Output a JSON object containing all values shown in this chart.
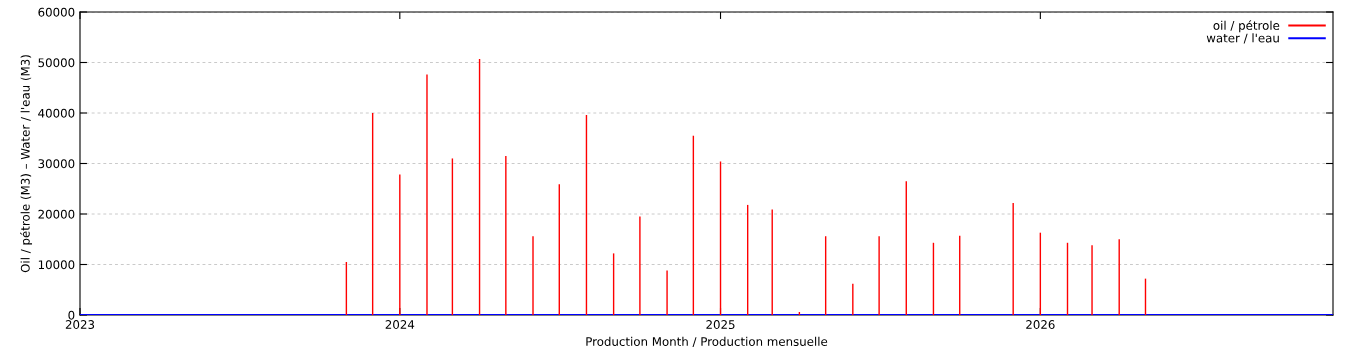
{
  "chart_data": {
    "type": "bar",
    "xlabel": "Production Month / Production mensuelle",
    "ylabel": "Oil / pétrole (M3) – Water / l'eau (M3)",
    "xlim": [
      "2023-01-01",
      "2026-12-01"
    ],
    "xticks": [
      {
        "value": "2023-01-01",
        "label": "2023"
      },
      {
        "value": "2024-01-01",
        "label": "2024"
      },
      {
        "value": "2025-01-01",
        "label": "2025"
      },
      {
        "value": "2026-01-01",
        "label": "2026"
      }
    ],
    "ylim": [
      0,
      60000
    ],
    "yticks": [
      0,
      10000,
      20000,
      30000,
      40000,
      50000,
      60000
    ],
    "grid": "y",
    "legend": "top right",
    "series": [
      {
        "name": "oil / pétrole",
        "color": "#ff0000",
        "x": [
          "2023-11-01",
          "2023-12-01",
          "2024-01-01",
          "2024-02-01",
          "2024-03-01",
          "2024-04-01",
          "2024-05-01",
          "2024-06-01",
          "2024-07-01",
          "2024-08-01",
          "2024-09-01",
          "2024-10-01",
          "2024-11-01",
          "2024-12-01",
          "2025-01-01",
          "2025-02-01",
          "2025-03-01",
          "2025-04-01",
          "2025-05-01",
          "2025-06-01",
          "2025-07-01",
          "2025-08-01",
          "2025-09-01",
          "2025-10-01",
          "2025-12-01",
          "2026-01-01",
          "2026-02-01",
          "2026-03-01",
          "2026-04-01",
          "2026-05-01"
        ],
        "values": [
          10500,
          40000,
          27800,
          47600,
          31000,
          50700,
          31500,
          15600,
          25900,
          39600,
          12200,
          19500,
          8800,
          35500,
          30400,
          21800,
          20900,
          600,
          15600,
          6200,
          15600,
          26500,
          14300,
          15700,
          22200,
          16300,
          14300,
          13800,
          15000,
          7200
        ]
      },
      {
        "name": "water / l'eau",
        "color": "#0000ff",
        "type": "line",
        "x": [
          "2023-01-01",
          "2026-12-01"
        ],
        "values": [
          0,
          0
        ]
      }
    ]
  }
}
